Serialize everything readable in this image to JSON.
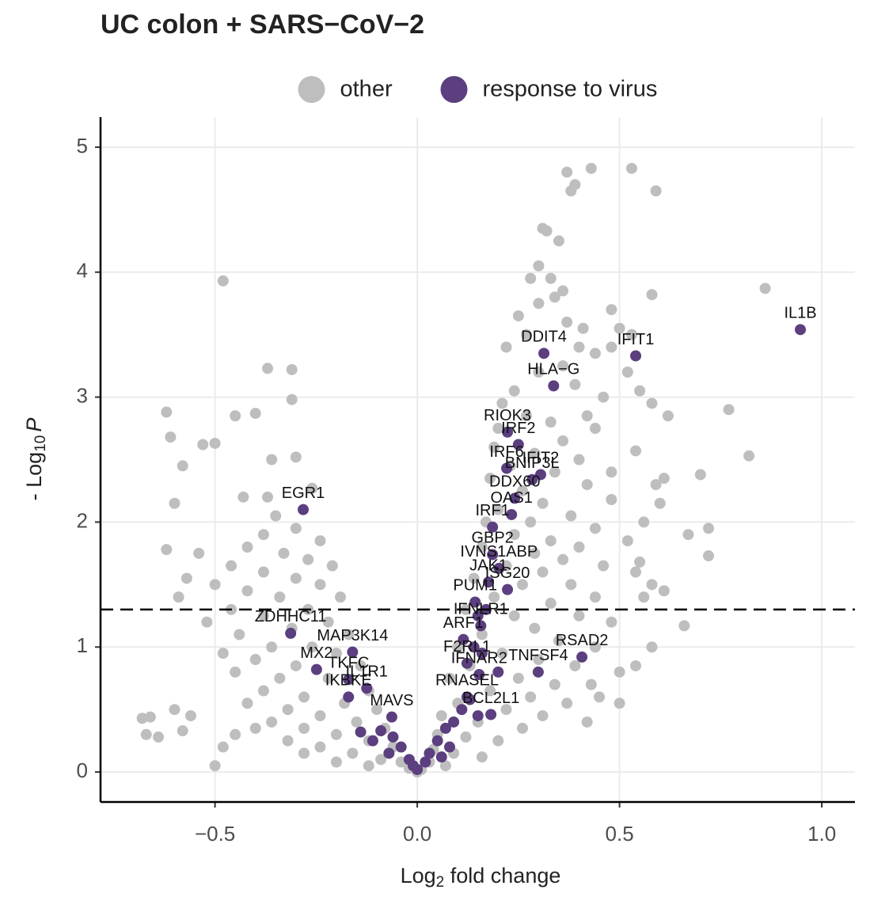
{
  "chart_data": {
    "type": "scatter",
    "title": "UC colon + SARS−CoV−2",
    "x_label": {
      "main": "Log",
      "sub": "2",
      "rest": " fold change"
    },
    "y_label": {
      "main": "- Log",
      "sub": "10",
      "var": "P"
    },
    "xlim": [
      -0.783,
      1.082
    ],
    "ylim": [
      -0.24,
      5.24
    ],
    "xticks": [
      {
        "value": -0.5,
        "label": "−0.5"
      },
      {
        "value": 0,
        "label": "0.0"
      },
      0.5,
      {
        "value": 1,
        "label": "1.0"
      }
    ],
    "yticks": [
      0,
      1,
      2,
      3,
      4,
      5
    ],
    "hline": 1.3,
    "grid": true,
    "legend": "top",
    "series": [
      {
        "name": "other",
        "color": "#bebebe",
        "x": [
          -0.48,
          -0.31,
          -0.37,
          -0.62,
          -0.4,
          -0.31,
          -0.45,
          -0.61,
          -0.53,
          -0.5,
          -0.58,
          -0.36,
          -0.3,
          -0.6,
          -0.43,
          -0.37,
          -0.26,
          -0.62,
          -0.54,
          -0.57,
          -0.59,
          -0.66,
          -0.68,
          -0.67,
          -0.64,
          -0.6,
          -0.56,
          -0.58,
          -0.5,
          -0.48,
          -0.45,
          -0.4,
          0.37,
          0.43,
          0.53,
          0.59,
          0.38,
          0.39,
          0.31,
          0.32,
          0.35,
          0.58,
          0.86,
          0.48,
          0.53,
          0.5,
          0.48,
          0.52,
          0.55,
          0.77,
          0.62,
          0.58,
          0.54,
          0.82,
          0.7,
          0.61,
          0.59,
          0.48,
          0.6,
          0.48,
          0.56,
          0.72,
          0.67,
          0.52,
          0.72,
          0.55,
          0.54,
          0.58,
          0.61,
          0.56,
          0.66,
          0.58,
          0.54,
          0.5,
          0.5,
          0.45,
          0.42,
          0.3,
          0.28,
          0.33,
          0.36,
          0.34,
          0.3,
          0.37,
          0.41,
          0.25,
          0.27,
          0.4,
          0.44,
          0.36,
          0.22,
          0.3,
          0.24,
          0.39,
          0.46,
          0.42,
          0.21,
          0.27,
          0.33,
          0.44,
          0.2,
          0.36,
          0.19,
          0.29,
          0.4,
          0.23,
          0.34,
          0.42,
          0.18,
          0.26,
          0.31,
          0.38,
          0.2,
          0.28,
          0.44,
          0.17,
          0.24,
          0.33,
          0.4,
          0.16,
          0.29,
          0.36,
          0.46,
          0.22,
          0.31,
          0.14,
          0.26,
          0.38,
          0.44,
          0.19,
          0.33,
          0.12,
          0.24,
          0.4,
          0.48,
          0.29,
          0.16,
          0.35,
          0.44,
          0.1,
          0.21,
          0.3,
          0.39,
          0.13,
          0.25,
          0.34,
          0.43,
          0.08,
          0.18,
          0.28,
          0.37,
          0.1,
          0.22,
          0.31,
          0.06,
          0.15,
          0.26,
          0.05,
          0.12,
          0.2,
          0.04,
          0.09,
          0.16,
          0.03,
          0.07,
          -0.35,
          -0.3,
          -0.38,
          -0.24,
          -0.42,
          -0.33,
          -0.27,
          -0.46,
          -0.21,
          -0.38,
          -0.3,
          -0.5,
          -0.24,
          -0.42,
          -0.34,
          -0.19,
          -0.46,
          -0.27,
          -0.38,
          -0.52,
          -0.22,
          -0.31,
          -0.44,
          -0.17,
          -0.36,
          -0.26,
          -0.48,
          -0.2,
          -0.4,
          -0.3,
          -0.14,
          -0.45,
          -0.34,
          -0.22,
          -0.12,
          -0.38,
          -0.28,
          -0.18,
          -0.42,
          -0.32,
          -0.1,
          -0.24,
          -0.36,
          -0.15,
          -0.28,
          -0.08,
          -0.2,
          -0.32,
          -0.12,
          -0.24,
          -0.06,
          -0.16,
          -0.28,
          -0.09,
          -0.2,
          -0.04,
          -0.12,
          -0.02,
          0.0,
          0.01
        ],
        "y": [
          3.93,
          3.22,
          3.23,
          2.88,
          2.87,
          2.98,
          2.85,
          2.68,
          2.62,
          2.63,
          2.45,
          2.5,
          2.52,
          2.15,
          2.2,
          2.2,
          2.27,
          1.78,
          1.75,
          1.55,
          1.4,
          0.44,
          0.43,
          0.3,
          0.28,
          0.5,
          0.45,
          0.33,
          0.05,
          0.2,
          0.3,
          0.35,
          4.8,
          4.83,
          4.83,
          4.65,
          4.65,
          4.7,
          4.35,
          4.33,
          4.25,
          3.82,
          3.87,
          3.7,
          3.5,
          3.55,
          3.4,
          3.2,
          3.05,
          2.9,
          2.85,
          2.95,
          2.57,
          2.53,
          2.38,
          2.35,
          2.3,
          2.4,
          2.15,
          2.18,
          2.0,
          1.95,
          1.9,
          1.85,
          1.73,
          1.68,
          1.6,
          1.5,
          1.45,
          1.4,
          1.17,
          1.0,
          0.85,
          0.8,
          0.55,
          0.6,
          0.4,
          4.05,
          3.95,
          3.95,
          3.85,
          3.8,
          3.75,
          3.6,
          3.55,
          3.65,
          3.5,
          3.4,
          3.35,
          3.25,
          3.4,
          3.2,
          3.05,
          3.1,
          3.0,
          2.85,
          2.95,
          2.85,
          2.8,
          2.75,
          2.75,
          2.65,
          2.6,
          2.55,
          2.5,
          2.45,
          2.4,
          2.3,
          2.35,
          2.25,
          2.15,
          2.05,
          2.1,
          2.0,
          1.95,
          2.0,
          1.9,
          1.85,
          1.8,
          1.8,
          1.75,
          1.7,
          1.65,
          1.65,
          1.6,
          1.55,
          1.5,
          1.5,
          1.4,
          1.4,
          1.35,
          1.3,
          1.25,
          1.25,
          1.2,
          1.15,
          1.1,
          1.05,
          1.0,
          1.0,
          0.95,
          0.9,
          0.85,
          0.85,
          0.75,
          0.7,
          0.7,
          0.75,
          0.65,
          0.6,
          0.55,
          0.55,
          0.5,
          0.45,
          0.45,
          0.4,
          0.35,
          0.3,
          0.28,
          0.25,
          0.18,
          0.15,
          0.12,
          0.08,
          0.05,
          2.05,
          1.95,
          1.9,
          1.85,
          1.8,
          1.75,
          1.7,
          1.65,
          1.65,
          1.6,
          1.55,
          1.5,
          1.5,
          1.45,
          1.4,
          1.4,
          1.3,
          1.3,
          1.25,
          1.2,
          1.2,
          1.15,
          1.1,
          1.1,
          1.0,
          1.0,
          0.95,
          0.95,
          0.9,
          0.85,
          0.85,
          0.8,
          0.75,
          0.75,
          0.65,
          0.65,
          0.6,
          0.55,
          0.55,
          0.5,
          0.5,
          0.45,
          0.4,
          0.4,
          0.35,
          0.35,
          0.3,
          0.25,
          0.25,
          0.2,
          0.2,
          0.15,
          0.15,
          0.1,
          0.08,
          0.08,
          0.05,
          0.03,
          0.0,
          0.02
        ]
      },
      {
        "name": "response to virus",
        "color": "#5b3f7f",
        "x": [
          0.947,
          0.54,
          0.313,
          0.337,
          0.223,
          0.25,
          0.221,
          0.305,
          0.284,
          0.241,
          0.233,
          -0.282,
          0.186,
          0.186,
          0.202,
          0.176,
          0.223,
          0.143,
          0.157,
          -0.313,
          0.114,
          -0.16,
          0.407,
          0.123,
          0.299,
          -0.17,
          -0.249,
          0.153,
          -0.125,
          0.123,
          -0.17,
          0.182,
          -0.063,
          -0.09,
          -0.06,
          -0.04,
          -0.02,
          -0.01,
          0.0,
          0.02,
          0.03,
          0.05,
          0.07,
          0.09,
          0.11,
          0.13,
          -0.11,
          -0.07,
          -0.14,
          0.06,
          0.08,
          0.15,
          0.16,
          0.15,
          0.17,
          0.14,
          0.2
        ],
        "y": [
          3.54,
          3.33,
          3.35,
          3.09,
          2.72,
          2.62,
          2.43,
          2.38,
          2.34,
          2.19,
          2.06,
          2.1,
          1.96,
          1.74,
          1.63,
          1.52,
          1.46,
          1.36,
          1.17,
          1.11,
          1.06,
          0.96,
          0.92,
          0.87,
          0.8,
          0.74,
          0.82,
          0.78,
          0.67,
          0.6,
          0.6,
          0.46,
          0.44,
          0.33,
          0.28,
          0.2,
          0.1,
          0.05,
          0.02,
          0.08,
          0.15,
          0.25,
          0.35,
          0.4,
          0.5,
          0.58,
          0.25,
          0.15,
          0.32,
          0.12,
          0.2,
          0.45,
          0.95,
          1.25,
          1.3,
          1.0,
          0.8
        ],
        "labels": [
          "IL1B",
          "IFIT1",
          "DDIT4",
          "HLA−G",
          "RIOK3",
          "IRF2",
          "IRF6",
          "IFIT2",
          "BNIP3L",
          "DDX60",
          "OAS1",
          "EGR1",
          "IRF1",
          "GBP2",
          "IVNS1ABP",
          "JAK1",
          "ISG20",
          "PUM1",
          "IFNLR1",
          "ZDHHC11",
          "ARF1",
          "MAP3K14",
          "RSAD2",
          "F2RL1",
          "TNFSF4",
          "TKFC",
          "MX2",
          "IFNAR2",
          "IL1R1",
          "RNASEL",
          "IKBKE",
          "BCL2L1",
          "MAVS",
          null,
          null,
          null,
          null,
          null,
          null,
          null,
          null,
          null,
          null,
          null,
          null,
          null,
          null,
          null,
          null,
          null,
          null,
          null,
          null,
          null,
          null,
          null,
          null
        ]
      }
    ]
  }
}
